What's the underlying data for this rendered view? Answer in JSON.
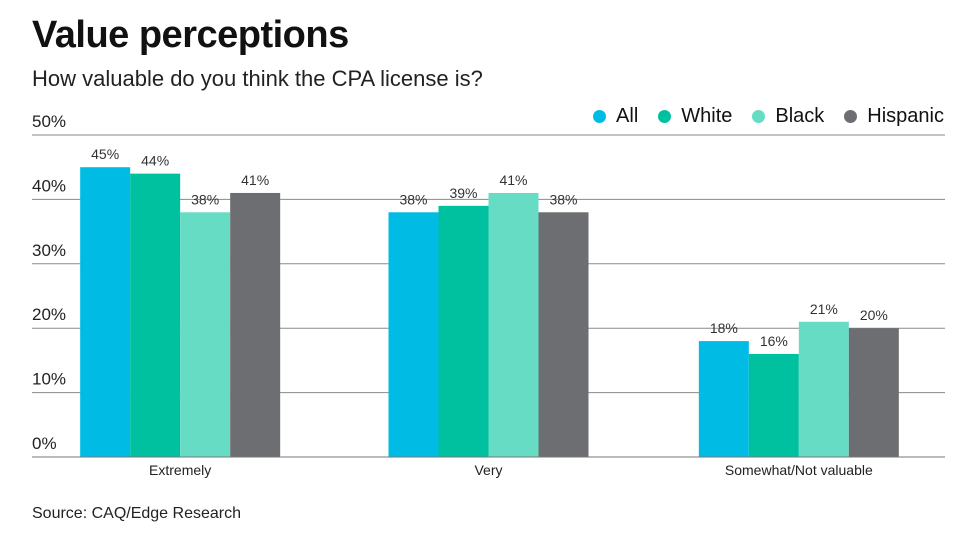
{
  "title": "Value perceptions",
  "subtitle": "How valuable do you think the CPA license is?",
  "source": "Source: CAQ/Edge Research",
  "chart_data": {
    "type": "bar",
    "title": "Value perceptions",
    "subtitle": "How valuable do you think the CPA license is?",
    "categories": [
      "Extremely",
      "Very",
      "Somewhat/Not valuable"
    ],
    "series": [
      {
        "name": "All",
        "color": "#00bce4",
        "values": [
          45,
          38,
          18
        ]
      },
      {
        "name": "White",
        "color": "#00c19f",
        "values": [
          44,
          39,
          16
        ]
      },
      {
        "name": "Black",
        "color": "#66dcc4",
        "values": [
          38,
          41,
          21
        ]
      },
      {
        "name": "Hispanic",
        "color": "#6d6e71",
        "values": [
          41,
          38,
          20
        ]
      }
    ],
    "yticks": [
      "0%",
      "10%",
      "20%",
      "30%",
      "40%",
      "50%"
    ],
    "ylim": [
      0,
      50
    ],
    "xlabel": "",
    "ylabel": "",
    "grid": true,
    "legend": "top-right",
    "value_suffix": "%"
  }
}
